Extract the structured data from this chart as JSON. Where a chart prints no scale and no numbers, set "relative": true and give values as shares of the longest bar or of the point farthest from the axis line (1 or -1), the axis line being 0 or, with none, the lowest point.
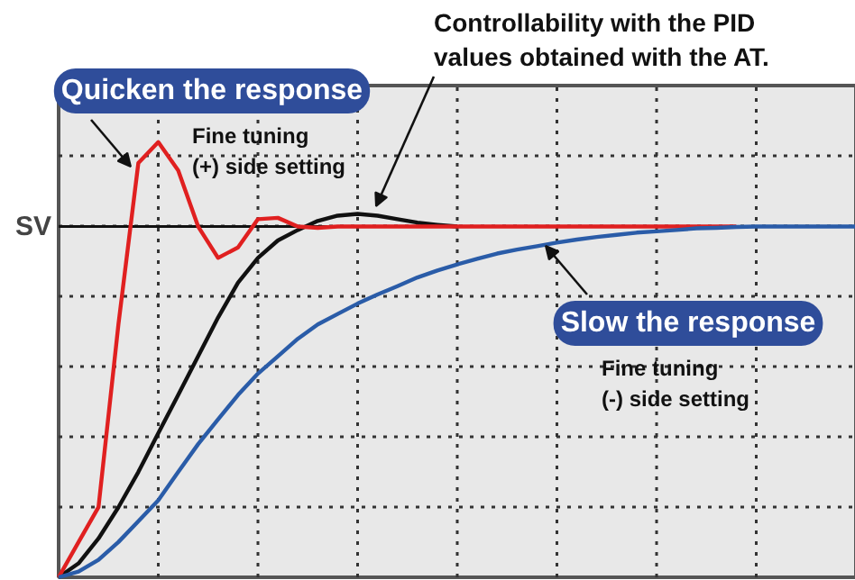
{
  "chart_data": {
    "type": "line",
    "relative": true,
    "grid": true,
    "marker": "none",
    "line_style": "solid",
    "categories": [
      null,
      null,
      null,
      null,
      null,
      null,
      null,
      null,
      null,
      null,
      null,
      null,
      null,
      null,
      null,
      null,
      null,
      null,
      null,
      null,
      null,
      null,
      null,
      null,
      null,
      null,
      null,
      null,
      null,
      null,
      null,
      null,
      null,
      null,
      null,
      null,
      null,
      null,
      null,
      null,
      null
    ],
    "series": [
      {
        "color": "#111111",
        "values": [
          0,
          0.032,
          0.089,
          0.161,
          0.242,
          0.331,
          0.419,
          0.508,
          0.597,
          0.677,
          0.734,
          0.774,
          0.798,
          0.819,
          0.831,
          0.835,
          0.831,
          0.823,
          0.815,
          0.81,
          0.806,
          null,
          null,
          null,
          null,
          null,
          null,
          null,
          null,
          null,
          null,
          null,
          null,
          null,
          null,
          null,
          null,
          null,
          null,
          null,
          null
        ]
      },
      {
        "color": "#e02020",
        "values": [
          0,
          0.081,
          0.161,
          0.581,
          0.952,
          1,
          0.935,
          0.806,
          0.734,
          0.758,
          0.823,
          0.826,
          0.806,
          0.803,
          0.806,
          0.806,
          0.806,
          0.806,
          0.806,
          0.806,
          0.806,
          0.806,
          0.806,
          0.806,
          0.806,
          0.806,
          0.806,
          0.806,
          0.806,
          0.806,
          0.806,
          0.806,
          0.806,
          0.806,
          0.806,
          null,
          null,
          null,
          null,
          null,
          null
        ]
      },
      {
        "color": "#2a5ca8",
        "values": [
          0,
          0.013,
          0.04,
          0.081,
          0.129,
          0.177,
          0.242,
          0.306,
          0.363,
          0.419,
          0.468,
          0.508,
          0.548,
          0.581,
          0.605,
          0.629,
          0.65,
          0.669,
          0.689,
          0.705,
          0.719,
          0.732,
          0.744,
          0.753,
          0.761,
          0.769,
          0.776,
          0.782,
          0.787,
          0.792,
          0.795,
          0.798,
          0.802,
          0.803,
          0.805,
          0.806,
          0.806,
          0.806,
          0.806,
          0.806,
          0.806
        ]
      }
    ],
    "ref_lines": [
      {
        "axis": "y",
        "value": 0.806,
        "label": "SV",
        "color": "#111111"
      }
    ],
    "annotations": [
      "Controllability with the PID\nvalues obtained with the AT.",
      "Quicken the response",
      "Fine tuning\n(+) side setting",
      "Slow the response",
      "Fine tuning\n(-) side setting"
    ]
  }
}
